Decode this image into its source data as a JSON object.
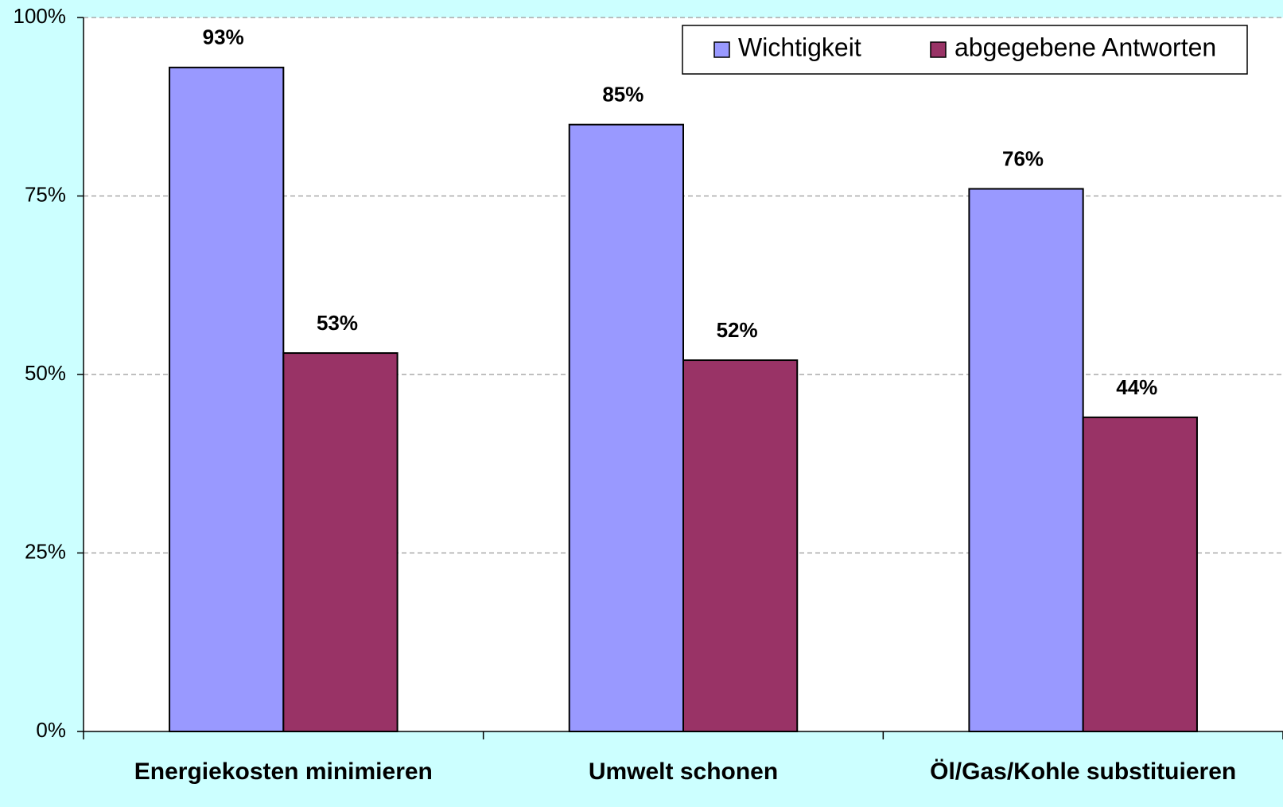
{
  "chart_data": {
    "type": "bar",
    "categories": [
      "Energiekosten minimieren",
      "Umwelt schonen",
      "Öl/Gas/Kohle substituieren"
    ],
    "series": [
      {
        "name": "Wichtigkeit",
        "color": "#9999ff",
        "values": [
          93,
          85,
          76
        ],
        "value_labels": [
          "93%",
          "85%",
          "76%"
        ]
      },
      {
        "name": "abgegebene Antworten",
        "color": "#993366",
        "values": [
          53,
          52,
          44
        ],
        "value_labels": [
          "53%",
          "52%",
          "44%"
        ]
      }
    ],
    "ylim": [
      0,
      100
    ],
    "yticks": [
      {
        "value": 0,
        "label": "0%"
      },
      {
        "value": 25,
        "label": "25%"
      },
      {
        "value": 50,
        "label": "50%"
      },
      {
        "value": 75,
        "label": "75%"
      },
      {
        "value": 100,
        "label": "100%"
      }
    ],
    "grid": true,
    "legend": "top-right"
  }
}
